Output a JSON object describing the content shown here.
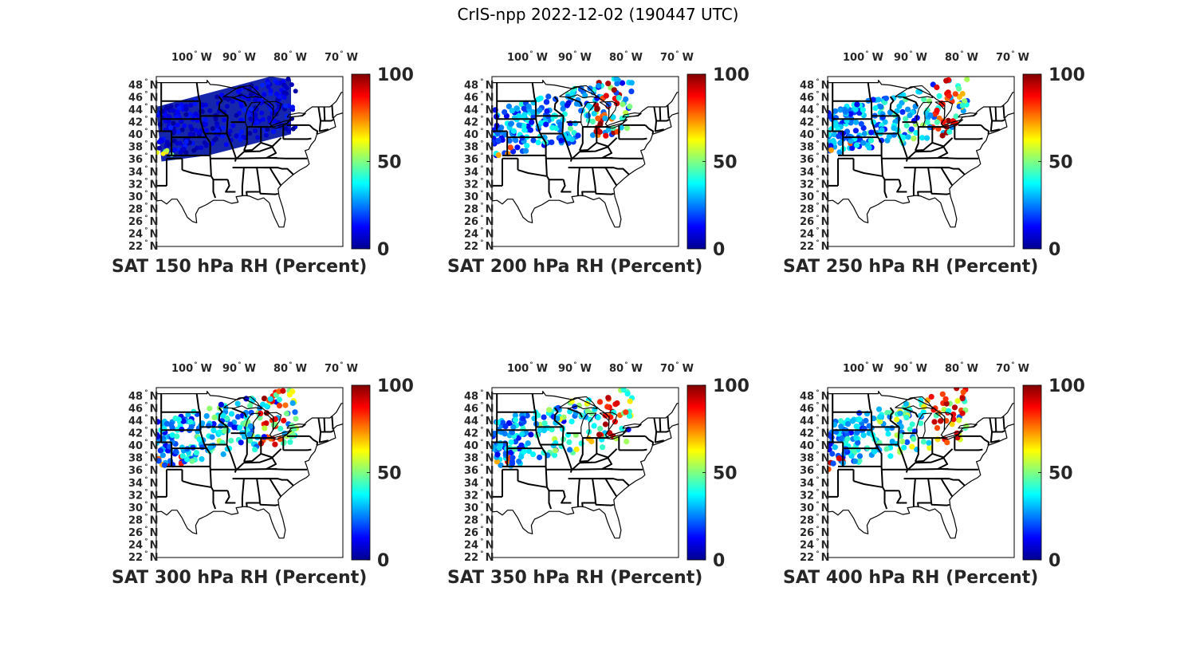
{
  "figure": {
    "title": "CrIS-npp 2022-12-02 (190447 UTC)"
  },
  "lat_labels": [
    "48",
    "46",
    "44",
    "42",
    "40",
    "38",
    "36",
    "34",
    "32",
    "30",
    "28",
    "26",
    "24",
    "22"
  ],
  "lat_suffix": "N",
  "lon_labels": [
    "100",
    "90",
    "80",
    "70"
  ],
  "lon_suffix": "W",
  "colorbar": {
    "min": 0,
    "max": 100,
    "ticks": [
      "100",
      "50",
      "0"
    ]
  },
  "panels": [
    {
      "title": "SAT 150 hPa RH (Percent)"
    },
    {
      "title": "SAT 200 hPa RH (Percent)"
    },
    {
      "title": "SAT 250 hPa RH (Percent)"
    },
    {
      "title": "SAT 300 hPa RH (Percent)"
    },
    {
      "title": "SAT 350 hPa RH (Percent)"
    },
    {
      "title": "SAT 400 hPa RH (Percent)"
    }
  ]
}
